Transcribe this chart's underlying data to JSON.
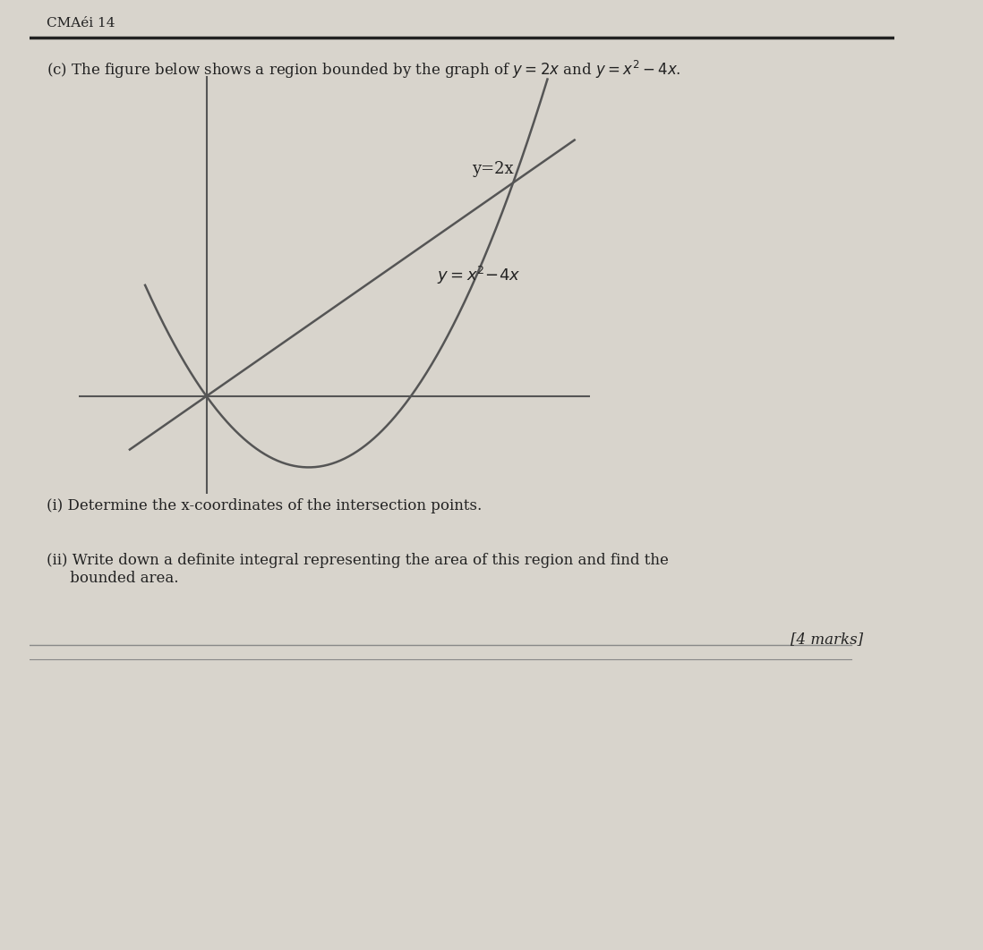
{
  "bg_color": "#d8d4cc",
  "paper_color": "#e8e4dc",
  "header_text": "CMAéi 14",
  "intro_text": "(c) The figure below shows a region bounded by the graph of $y=2x$ and $y=x^2-4x$.",
  "label_line": "y=2x",
  "label_parabola": "$y=x^2-4x$",
  "q1_text": "(i) Determine the x-coordinates of the intersection points.",
  "q2_text": "(ii) Write down a definite integral representing the area of this region and find the\n     bounded area.",
  "marks_text": "[4 marks]",
  "curve_color": "#555555",
  "line_color": "#555555",
  "axis_color": "#555555",
  "text_color": "#222222",
  "plot_xlim": [
    -2.5,
    7.5
  ],
  "plot_ylim": [
    -5.5,
    18
  ],
  "x_axis_y": 0,
  "line_lw": 1.8,
  "axis_lw": 1.5,
  "font_size_header": 11,
  "font_size_body": 12,
  "font_size_label": 12
}
